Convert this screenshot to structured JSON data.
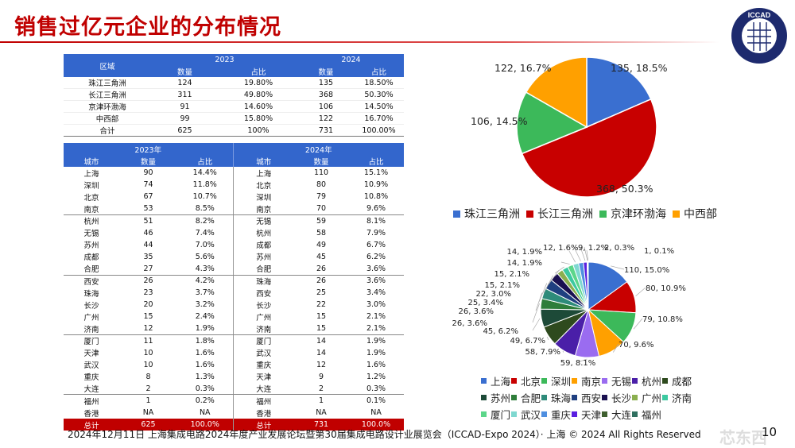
{
  "title": "销售过亿元企业的分布情况",
  "logo_text": "ICCAD",
  "region_table": {
    "header_region": "区域",
    "year1": "2023",
    "year2": "2024",
    "col_count": "数量",
    "col_share": "占比",
    "rows": [
      [
        "珠江三角洲",
        "124",
        "19.80%",
        "135",
        "18.50%"
      ],
      [
        "长江三角洲",
        "311",
        "49.80%",
        "368",
        "50.30%"
      ],
      [
        "京津环渤海",
        "91",
        "14.60%",
        "106",
        "14.50%"
      ],
      [
        "中西部",
        "99",
        "15.80%",
        "122",
        "16.70%"
      ]
    ],
    "total": [
      "合计",
      "625",
      "100%",
      "731",
      "100.00%"
    ]
  },
  "city_table": {
    "year1": "2023年",
    "year2": "2024年",
    "col_city": "城市",
    "col_count": "数量",
    "col_share": "占比",
    "rows": [
      [
        "上海",
        "90",
        "14.4%",
        "上海",
        "110",
        "15.1%"
      ],
      [
        "深圳",
        "74",
        "11.8%",
        "北京",
        "80",
        "10.9%"
      ],
      [
        "北京",
        "67",
        "10.7%",
        "深圳",
        "79",
        "10.8%"
      ],
      [
        "南京",
        "53",
        "8.5%",
        "南京",
        "70",
        "9.6%"
      ],
      [
        "杭州",
        "51",
        "8.2%",
        "无锡",
        "59",
        "8.1%"
      ],
      [
        "无锡",
        "46",
        "7.4%",
        "杭州",
        "58",
        "7.9%"
      ],
      [
        "苏州",
        "44",
        "7.0%",
        "成都",
        "49",
        "6.7%"
      ],
      [
        "成都",
        "35",
        "5.6%",
        "苏州",
        "45",
        "6.2%"
      ],
      [
        "合肥",
        "27",
        "4.3%",
        "合肥",
        "26",
        "3.6%"
      ],
      [
        "西安",
        "26",
        "4.2%",
        "珠海",
        "26",
        "3.6%"
      ],
      [
        "珠海",
        "23",
        "3.7%",
        "西安",
        "25",
        "3.4%"
      ],
      [
        "长沙",
        "20",
        "3.2%",
        "长沙",
        "22",
        "3.0%"
      ],
      [
        "广州",
        "15",
        "2.4%",
        "广州",
        "15",
        "2.1%"
      ],
      [
        "济南",
        "12",
        "1.9%",
        "济南",
        "15",
        "2.1%"
      ],
      [
        "厦门",
        "11",
        "1.8%",
        "厦门",
        "14",
        "1.9%"
      ],
      [
        "天津",
        "10",
        "1.6%",
        "武汉",
        "14",
        "1.9%"
      ],
      [
        "武汉",
        "10",
        "1.6%",
        "重庆",
        "12",
        "1.6%"
      ],
      [
        "重庆",
        "8",
        "1.3%",
        "天津",
        "9",
        "1.2%"
      ],
      [
        "大连",
        "2",
        "0.3%",
        "大连",
        "2",
        "0.3%"
      ],
      [
        "福州",
        "1",
        "0.2%",
        "福州",
        "1",
        "0.1%"
      ],
      [
        "香港",
        "NA",
        "NA",
        "香港",
        "NA",
        "NA"
      ]
    ],
    "total": [
      "总计",
      "625",
      "100.0%",
      "总计",
      "731",
      "100.0%"
    ]
  },
  "chart_data": [
    {
      "type": "pie",
      "title": "",
      "categories": [
        "珠江三角洲",
        "长江三角洲",
        "京津环渤海",
        "中西部"
      ],
      "values": [
        135,
        368,
        106,
        122
      ],
      "labels": [
        "135, 18.5%",
        "368, 50.3%",
        "106, 14.5%",
        "122, 16.7%"
      ],
      "colors": [
        "#3a6fd0",
        "#c80000",
        "#3cb95a",
        "#ffa000"
      ],
      "legend": "bottom"
    },
    {
      "type": "pie",
      "title": "",
      "categories": [
        "上海",
        "北京",
        "深圳",
        "南京",
        "无锡",
        "杭州",
        "成都",
        "苏州",
        "合肥",
        "珠海",
        "西安",
        "长沙",
        "广州",
        "济南",
        "厦门",
        "武汉",
        "重庆",
        "天津",
        "大连",
        "福州"
      ],
      "values": [
        110,
        80,
        79,
        70,
        59,
        58,
        49,
        45,
        26,
        26,
        25,
        22,
        15,
        15,
        14,
        14,
        12,
        9,
        2,
        1
      ],
      "labels": [
        "110, 15.0%",
        "80, 10.9%",
        "79, 10.8%",
        "70, 9.6%",
        "59, 8.1%",
        "58, 7.9%",
        "49, 6.7%",
        "45, 6.2%",
        "26, 3.6%",
        "26, 3.6%",
        "25, 3.4%",
        "22, 3.0%",
        "15, 2.1%",
        "15, 2.1%",
        "14, 1.9%",
        "14, 1.9%",
        "12, 1.6%",
        "9, 1.2%",
        "2, 0.3%",
        "1, 0.1%"
      ],
      "colors": [
        "#3a6fd0",
        "#c80000",
        "#3cb95a",
        "#ffa000",
        "#9a6cf0",
        "#4a1fa8",
        "#2e4a1e",
        "#1d4a38",
        "#2e7d3a",
        "#2e8b7a",
        "#1f3f80",
        "#1a1050",
        "#8baf4f",
        "#3cc9a0",
        "#5cd68a",
        "#7fd8d0",
        "#4f8fe0",
        "#5a1fe0",
        "#3f5f2f",
        "#2f6f5f"
      ],
      "legend": "bottom"
    }
  ],
  "footer": "2024年12月11日 上海集成电路2024年度产业发展论坛暨第30届集成电路设计业展览会（ICCAD-Expo 2024）· 上海 © 2024 All Rights Reserved",
  "page_number": "10",
  "watermark": "芯东西"
}
